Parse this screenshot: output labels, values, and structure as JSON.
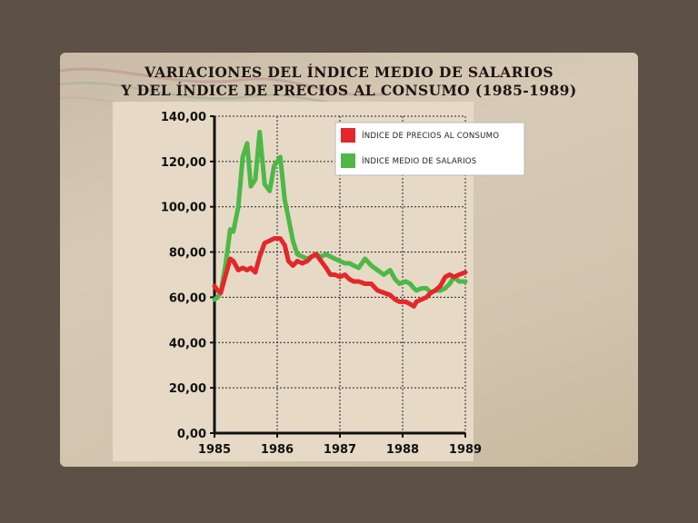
{
  "title_line1": "VARIACIONES DEL ÍNDICE MEDIO DE SALARIOS",
  "title_line2": "Y DEL ÍNDICE DE PRECIOS AL CONSUMO  (1985-1989)",
  "colors": {
    "background": "#5d5046",
    "precios": "#e3272a",
    "salarios": "#4db848"
  },
  "chart_data": {
    "type": "line",
    "title": "VARIACIONES DEL ÍNDICE MEDIO DE SALARIOS Y DEL ÍNDICE DE PRECIOS AL CONSUMO (1985-1989)",
    "xlabel": "",
    "ylabel": "",
    "xlim": [
      1985,
      1989
    ],
    "ylim": [
      0,
      140
    ],
    "x_ticks": [
      "1985",
      "1986",
      "1987",
      "1988",
      "1989"
    ],
    "y_ticks": [
      "0,00",
      "20,00",
      "40,00",
      "60,00",
      "80,00",
      "100,00",
      "120,00",
      "140,00"
    ],
    "grid": true,
    "legend_position": "top-right",
    "series": [
      {
        "name": "ÍNDICE DE PRECIOS AL CONSUMO",
        "color": "#e3272a",
        "x": [
          1985.0,
          1985.05,
          1985.1,
          1985.18,
          1985.25,
          1985.3,
          1985.38,
          1985.45,
          1985.52,
          1985.58,
          1985.65,
          1985.72,
          1985.8,
          1985.88,
          1985.95,
          1986.05,
          1986.12,
          1986.18,
          1986.25,
          1986.32,
          1986.4,
          1986.48,
          1986.55,
          1986.62,
          1986.7,
          1986.78,
          1986.85,
          1986.92,
          1987.0,
          1987.08,
          1987.15,
          1987.22,
          1987.3,
          1987.4,
          1987.5,
          1987.6,
          1987.7,
          1987.8,
          1987.88,
          1987.95,
          1988.05,
          1988.12,
          1988.18,
          1988.22,
          1988.3,
          1988.38,
          1988.45,
          1988.52,
          1988.6,
          1988.68,
          1988.75,
          1988.82,
          1988.9,
          1989.0
        ],
        "values": [
          65,
          63,
          62,
          70,
          77,
          76,
          72,
          73,
          72,
          73,
          71,
          78,
          84,
          85,
          86,
          86,
          83,
          76,
          74,
          76,
          75,
          76,
          78,
          79,
          76,
          73,
          70,
          70,
          69,
          70,
          68,
          67,
          67,
          66,
          66,
          63,
          62,
          61,
          59,
          58,
          58,
          57,
          56,
          58,
          59,
          60,
          62,
          63,
          65,
          69,
          70,
          69,
          70,
          71
        ]
      },
      {
        "name": "ÍNDICE MEDIO DE SALARIOS",
        "color": "#4db848",
        "x": [
          1985.0,
          1985.05,
          1985.1,
          1985.18,
          1985.25,
          1985.3,
          1985.38,
          1985.45,
          1985.52,
          1985.58,
          1985.65,
          1985.72,
          1985.8,
          1985.88,
          1985.95,
          1986.05,
          1986.12,
          1986.18,
          1986.25,
          1986.32,
          1986.4,
          1986.48,
          1986.55,
          1986.62,
          1986.7,
          1986.78,
          1986.85,
          1986.92,
          1987.0,
          1987.08,
          1987.15,
          1987.22,
          1987.3,
          1987.4,
          1987.5,
          1987.6,
          1987.7,
          1987.8,
          1987.88,
          1987.95,
          1988.05,
          1988.12,
          1988.18,
          1988.22,
          1988.3,
          1988.38,
          1988.45,
          1988.52,
          1988.6,
          1988.68,
          1988.75,
          1988.82,
          1988.9,
          1989.0
        ],
        "values": [
          59,
          60,
          62,
          75,
          90,
          89,
          100,
          122,
          128,
          109,
          112,
          133,
          110,
          107,
          118,
          122,
          103,
          95,
          85,
          79,
          78,
          77,
          78,
          79,
          78,
          79,
          78,
          77,
          76,
          75,
          75,
          74,
          73,
          77,
          74,
          72,
          70,
          72,
          68,
          66,
          67,
          66,
          64,
          63,
          64,
          64,
          62,
          63,
          63,
          64,
          66,
          69,
          67,
          67
        ]
      }
    ]
  }
}
